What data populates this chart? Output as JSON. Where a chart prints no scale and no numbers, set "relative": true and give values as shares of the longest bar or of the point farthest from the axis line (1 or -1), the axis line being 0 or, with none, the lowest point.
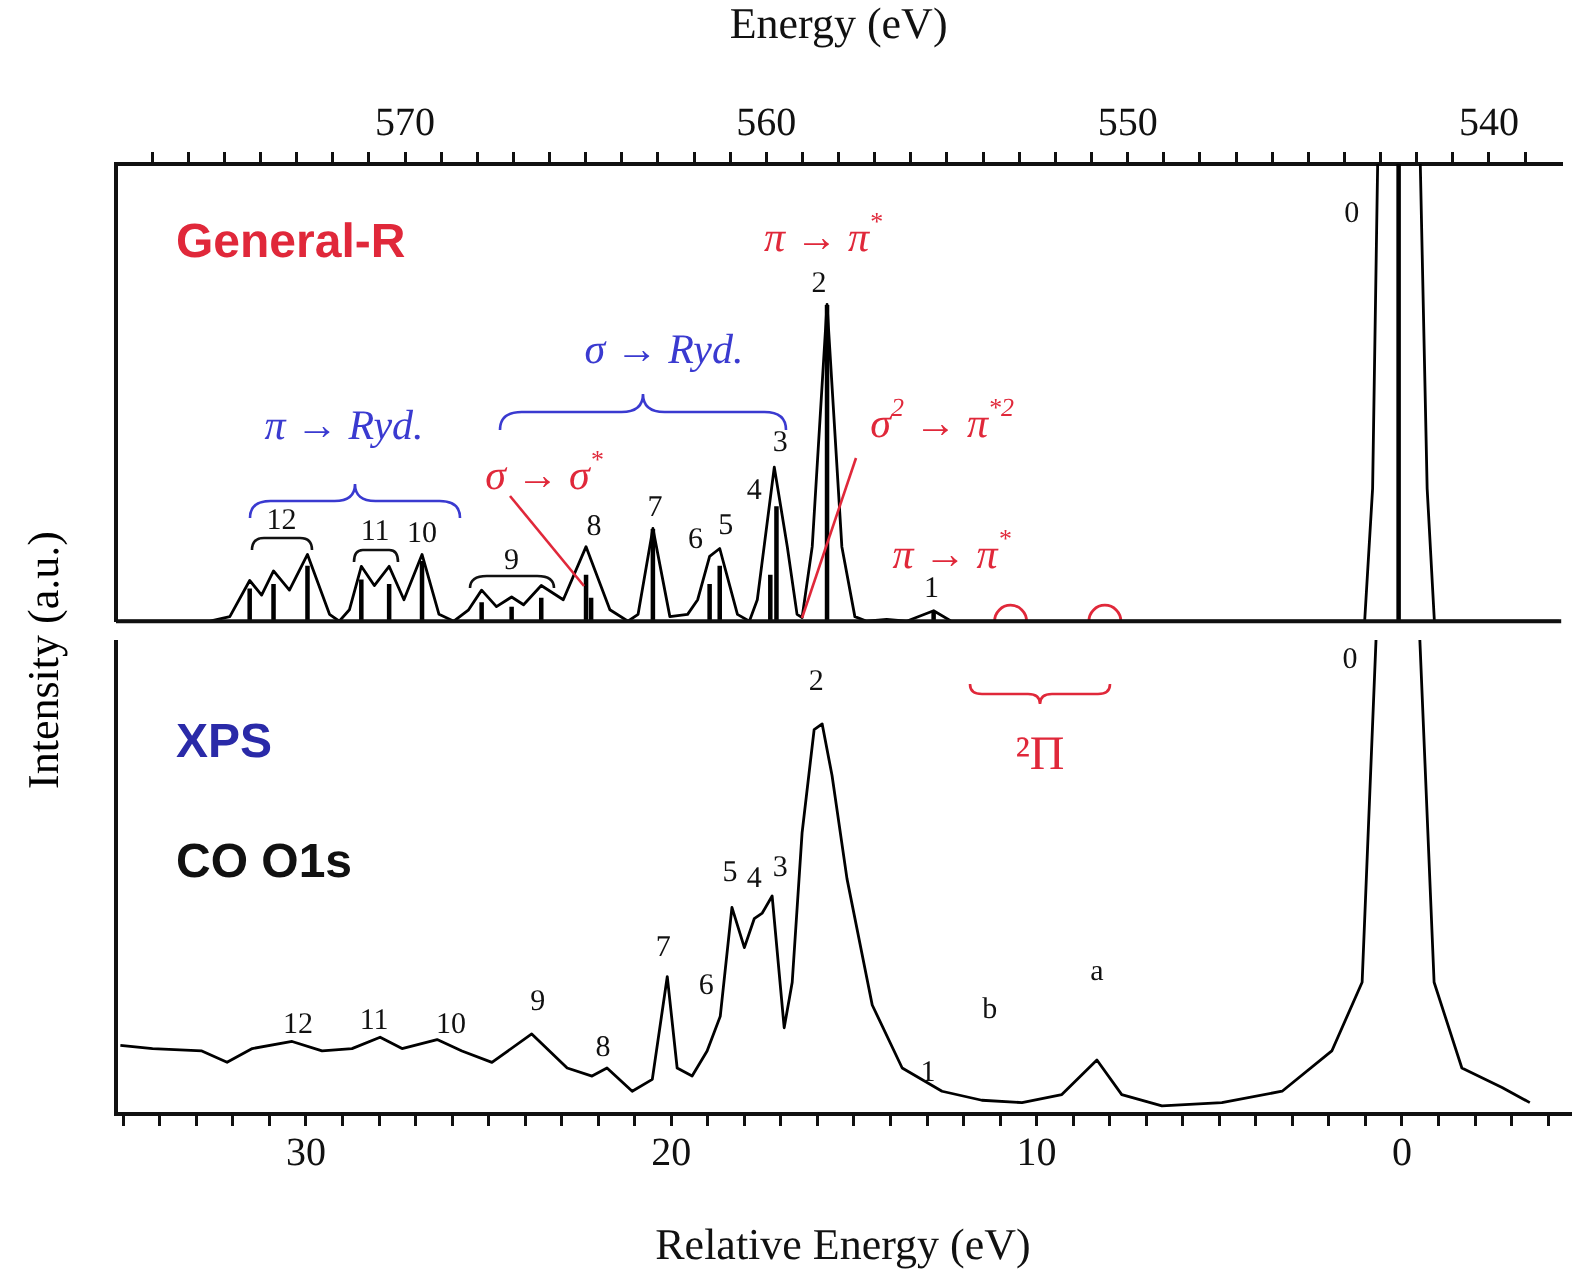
{
  "chart_data": [
    {
      "type": "line",
      "relative": true,
      "xlabel": "Energy (eV)",
      "xlim": [
        578,
        538
      ],
      "xticks": [
        {
          "value": 539,
          "label": null
        },
        540,
        {
          "value": 541,
          "label": null
        },
        {
          "value": 542,
          "label": null
        },
        {
          "value": 543,
          "label": null
        },
        {
          "value": 544,
          "label": null
        },
        {
          "value": 545,
          "label": null
        },
        {
          "value": 546,
          "label": null
        },
        {
          "value": 547,
          "label": null
        },
        {
          "value": 548,
          "label": null
        },
        {
          "value": 549,
          "label": null
        },
        550,
        {
          "value": 551,
          "label": null
        },
        {
          "value": 552,
          "label": null
        },
        {
          "value": 553,
          "label": null
        },
        {
          "value": 554,
          "label": null
        },
        {
          "value": 555,
          "label": null
        },
        {
          "value": 556,
          "label": null
        },
        {
          "value": 557,
          "label": null
        },
        {
          "value": 558,
          "label": null
        },
        {
          "value": 559,
          "label": null
        },
        560,
        {
          "value": 561,
          "label": null
        },
        {
          "value": 562,
          "label": null
        },
        {
          "value": 563,
          "label": null
        },
        {
          "value": 564,
          "label": null
        },
        {
          "value": 565,
          "label": null
        },
        {
          "value": 566,
          "label": null
        },
        {
          "value": 567,
          "label": null
        },
        {
          "value": 568,
          "label": null
        },
        {
          "value": 569,
          "label": null
        },
        570,
        {
          "value": 571,
          "label": null
        },
        {
          "value": 572,
          "label": null
        },
        {
          "value": 573,
          "label": null
        },
        {
          "value": 574,
          "label": null
        },
        {
          "value": 575,
          "label": null
        },
        {
          "value": 576,
          "label": null
        },
        {
          "value": 577,
          "label": null
        }
      ],
      "grid": false,
      "legend": false,
      "annotations": [
        "General-R",
        "π → Ryd.",
        "σ → Ryd.",
        {
          "text": "σ → σ$^{*}$",
          "x": 564.99,
          "y": 0.1
        },
        {
          "text": "π → π$^{*}$",
          "x": 558.32,
          "y": 0.693
        },
        {
          "text": "σ$^{2}$ → π$^{*2}$",
          "x": 559.01,
          "y": 0.008
        },
        {
          "text": "π → π$^{*}$",
          "x": 555.37,
          "y": 0.023
        },
        {
          "text": "0",
          "x": 543.08,
          "y": 1
        },
        {
          "text": "1",
          "x": 555.37,
          "y": 0.023
        },
        {
          "text": "2",
          "x": 558.32,
          "y": 0.693
        },
        {
          "text": "3",
          "x": 559.78,
          "y": 0.337
        },
        {
          "text": "4",
          "x": 559.89,
          "y": 0.1
        },
        {
          "text": "5",
          "x": 561.29,
          "y": 0.159
        },
        {
          "text": "6",
          "x": 561.57,
          "y": 0.142
        },
        {
          "text": "7",
          "x": 563.14,
          "y": 0.203
        },
        {
          "text": "8",
          "x": 564.99,
          "y": 0.163
        },
        {
          "text": "9",
          "x": 567.05,
          "y": 0.053
        },
        {
          "text": "10",
          "x": 569.53,
          "y": 0.146
        },
        {
          "text": "11",
          "x": 570.44,
          "y": 0.12
        },
        {
          "text": "12",
          "x": 573.64,
          "y": 0.11
        }
      ],
      "series": [
        {
          "color": "#000000",
          "x": [
            577.88,
            575.4,
            574.85,
            574.3,
            573.97,
            573.64,
            573.2,
            572.7,
            572.09,
            571.82,
            571.54,
            571.21,
            570.85,
            570.44,
            570.03,
            569.53,
            569.06,
            568.65,
            568.24,
            567.88,
            567.47,
            567.05,
            566.72,
            566.23,
            565.62,
            564.99,
            564.33,
            563.83,
            563.55,
            563.14,
            562.67,
            562.18,
            561.9,
            561.57,
            561.29,
            560.8,
            560.47,
            560.25,
            559.78,
            559.42,
            559.15,
            559.01,
            558.73,
            558.32,
            557.91,
            557.55,
            557.22,
            556.67,
            556.12,
            555.37,
            554.88,
            543.58,
            543.44,
            543.22,
            543.08,
            542.5,
            541.9,
            541.71,
            541.51,
            538.05
          ],
          "values": [
            0,
            0,
            0.01,
            0.089,
            0.057,
            0.11,
            0.068,
            0.146,
            0.015,
            0,
            0.025,
            0.12,
            0.078,
            0.12,
            0.047,
            0.146,
            0.015,
            0,
            0.025,
            0.068,
            0.032,
            0.053,
            0.036,
            0.078,
            0.047,
            0.163,
            0.025,
            0,
            0.015,
            0.203,
            0.01,
            0.015,
            0.047,
            0.142,
            0.159,
            0.015,
            0,
            0.047,
            0.337,
            0.163,
            0.015,
            0.008,
            0.163,
            0.693,
            0.163,
            0.01,
            0,
            0.004,
            0,
            0.023,
            0,
            0,
            0,
            0.29,
            1,
            null,
            1,
            0.29,
            0,
            0
          ]
        },
        {
          "type": "bar",
          "color": "#000000",
          "x": [
            574.3,
            573.64,
            572.7,
            571.21,
            570.44,
            569.53,
            567.88,
            567.05,
            566.23,
            564.99,
            564.85,
            563.14,
            561.57,
            561.29,
            559.89,
            559.72,
            558.32,
            555.37,
            542.5
          ],
          "values": [
            0.07,
            0.08,
            0.12,
            0.09,
            0.08,
            0.13,
            0.04,
            0.03,
            0.05,
            0.1,
            0.05,
            0.2,
            0.08,
            0.12,
            0.1,
            0.25,
            0.69,
            0.02,
            1
          ]
        },
        {
          "type": "scatter",
          "color": "#e0283a",
          "marker": "circle",
          "x": [
            553.24,
            550.63
          ],
          "values": [
            0,
            0
          ]
        }
      ]
    },
    {
      "type": "line",
      "relative": true,
      "xlabel": "Relative Energy (eV)",
      "ylabel": "Intensity (a.u.)",
      "xlim": [
        35.2,
        -4.6
      ],
      "xticks": [
        {
          "value": -4,
          "label": null
        },
        {
          "value": -3,
          "label": null
        },
        {
          "value": -2,
          "label": null
        },
        {
          "value": -1,
          "label": null
        },
        0,
        {
          "value": 1,
          "label": null
        },
        {
          "value": 2,
          "label": null
        },
        {
          "value": 3,
          "label": null
        },
        {
          "value": 4,
          "label": null
        },
        {
          "value": 5,
          "label": null
        },
        {
          "value": 6,
          "label": null
        },
        {
          "value": 7,
          "label": null
        },
        {
          "value": 8,
          "label": null
        },
        {
          "value": 9,
          "label": null
        },
        10,
        {
          "value": 11,
          "label": null
        },
        {
          "value": 12,
          "label": null
        },
        {
          "value": 13,
          "label": null
        },
        {
          "value": 14,
          "label": null
        },
        {
          "value": 15,
          "label": null
        },
        {
          "value": 16,
          "label": null
        },
        {
          "value": 17,
          "label": null
        },
        {
          "value": 18,
          "label": null
        },
        {
          "value": 19,
          "label": null
        },
        20,
        {
          "value": 21,
          "label": null
        },
        {
          "value": 22,
          "label": null
        },
        {
          "value": 23,
          "label": null
        },
        {
          "value": 24,
          "label": null
        },
        {
          "value": 25,
          "label": null
        },
        {
          "value": 26,
          "label": null
        },
        {
          "value": 27,
          "label": null
        },
        {
          "value": 28,
          "label": null
        },
        {
          "value": 29,
          "label": null
        },
        30,
        {
          "value": 31,
          "label": null
        },
        {
          "value": 32,
          "label": null
        },
        {
          "value": 33,
          "label": null
        },
        {
          "value": 34,
          "label": null
        },
        {
          "value": 35,
          "label": null
        }
      ],
      "grid": false,
      "legend": false,
      "annotations": [
        "XPS",
        "CO O1s",
        "²Π",
        {
          "text": "0",
          "x": 0.71,
          "y": 1
        },
        {
          "text": "1",
          "x": 12.59,
          "y": 0.048
        },
        {
          "text": "2",
          "x": 15.87,
          "y": 0.823
        },
        {
          "text": "3",
          "x": 17.24,
          "y": 0.46
        },
        {
          "text": "4",
          "x": 17.51,
          "y": 0.424
        },
        {
          "text": "5",
          "x": 18.34,
          "y": 0.436
        },
        {
          "text": "6",
          "x": 18.66,
          "y": 0.206
        },
        {
          "text": "7",
          "x": 20.11,
          "y": 0.29
        },
        {
          "text": "8",
          "x": 21.76,
          "y": 0.097
        },
        {
          "text": "9",
          "x": 23.82,
          "y": 0.169
        },
        {
          "text": "10",
          "x": 26.41,
          "y": 0.157
        },
        {
          "text": "11",
          "x": 27.97,
          "y": 0.162
        },
        {
          "text": "12",
          "x": 30.38,
          "y": 0.153
        },
        {
          "text": "b",
          "x": 11.5,
          "y": 0.029
        },
        {
          "text": "a",
          "x": 8.35,
          "y": 0.114
        }
      ],
      "series": [
        {
          "color": "#000000",
          "x": [
            35.08,
            34.2,
            32.85,
            32.16,
            31.47,
            30.38,
            29.56,
            28.74,
            27.97,
            27.37,
            26.41,
            25.73,
            24.91,
            23.82,
            22.85,
            22.17,
            21.76,
            21.07,
            20.52,
            20.11,
            19.84,
            19.43,
            19.02,
            18.66,
            18.34,
            18.0,
            17.73,
            17.51,
            17.24,
            16.91,
            16.69,
            16.42,
            16.09,
            15.87,
            15.6,
            15.19,
            14.5,
            13.68,
            12.59,
            11.5,
            10.4,
            9.31,
            8.35,
            7.67,
            6.57,
            4.93,
            3.28,
            1.92,
            1.09,
            0.71,
            0.1,
            -0.49,
            -0.88,
            -1.64,
            -2.74,
            -3.5
          ],
          "values": [
            0.145,
            0.138,
            0.133,
            0.109,
            0.138,
            0.153,
            0.133,
            0.138,
            0.162,
            0.138,
            0.157,
            0.133,
            0.109,
            0.169,
            0.097,
            0.08,
            0.097,
            0.048,
            0.073,
            0.29,
            0.097,
            0.08,
            0.133,
            0.206,
            0.436,
            0.351,
            0.412,
            0.424,
            0.46,
            0.182,
            0.278,
            0.593,
            0.811,
            0.823,
            0.714,
            0.496,
            0.23,
            0.097,
            0.048,
            0.029,
            0.024,
            0.041,
            0.114,
            0.041,
            0.017,
            0.024,
            0.048,
            0.133,
            0.278,
            1,
            null,
            1,
            0.278,
            0.097,
            0.056,
            0.024
          ]
        }
      ]
    }
  ]
}
